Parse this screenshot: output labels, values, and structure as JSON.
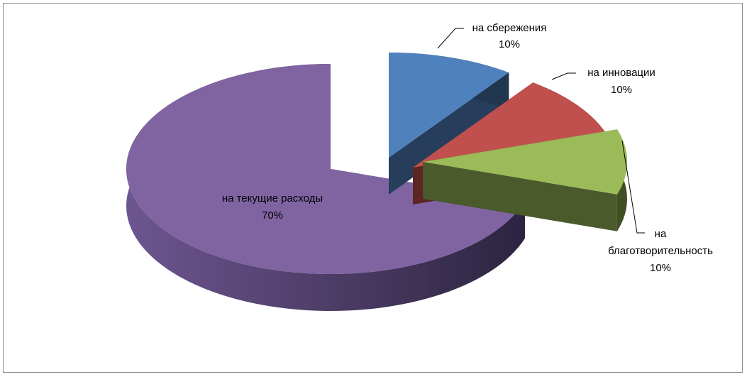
{
  "chart_data": {
    "type": "pie",
    "style": "3d-exploded",
    "title": "",
    "slices": [
      {
        "label": "на сбережения",
        "value": 10,
        "value_label": "10%",
        "color": "#4f81bd"
      },
      {
        "label": "на инновации",
        "value": 10,
        "value_label": "10%",
        "color": "#c0504d"
      },
      {
        "label": "на благотворительность",
        "label_lines": [
          "на",
          "благотворительность"
        ],
        "value": 10,
        "value_label": "10%",
        "color": "#9bbb59"
      },
      {
        "label": "на текущие расходы",
        "value": 70,
        "value_label": "70%",
        "color": "#8064a2"
      }
    ],
    "legend": "none",
    "data_labels": "category and percent"
  }
}
